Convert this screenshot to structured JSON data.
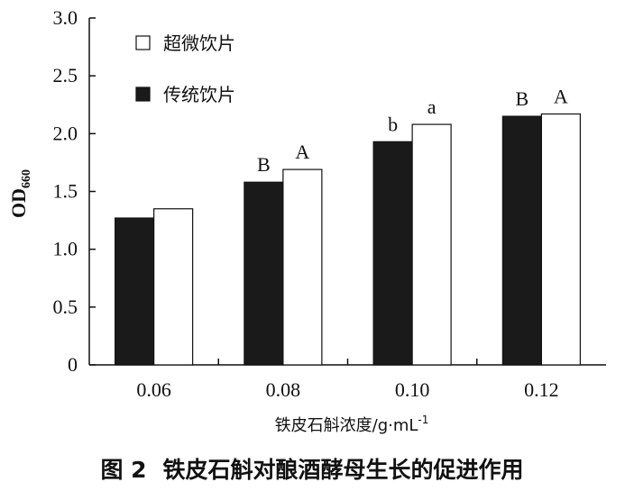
{
  "chart_data": {
    "type": "bar",
    "categories": [
      "0.06",
      "0.08",
      "0.10",
      "0.12"
    ],
    "series": [
      {
        "name": "传统饮片",
        "values": [
          1.27,
          1.58,
          1.93,
          2.15
        ],
        "color": "#1a1a1a",
        "letters": [
          "",
          "B",
          "b",
          "B"
        ]
      },
      {
        "name": "超微饮片",
        "values": [
          1.35,
          1.69,
          2.08,
          2.17
        ],
        "color": "#ffffff",
        "letters": [
          "",
          "A",
          "a",
          "A"
        ]
      }
    ],
    "xlabel": "铁皮石斛浓度/g·mL",
    "xlabel_sup": "-1",
    "ylabel_main": "OD",
    "ylabel_sub": "660",
    "ylim": [
      0,
      3.0
    ],
    "yticks": [
      "0",
      "0.5",
      "1.0",
      "1.5",
      "2.0",
      "2.5",
      "3.0"
    ],
    "ytick_values": [
      0,
      0.5,
      1.0,
      1.5,
      2.0,
      2.5,
      3.0
    ],
    "legend": [
      {
        "label": "超微饮片",
        "color": "#ffffff"
      },
      {
        "label": "传统饮片",
        "color": "#1a1a1a"
      }
    ],
    "legend_position": "top-left",
    "grid": false
  },
  "caption": {
    "label": "图 2",
    "text": "铁皮石斛对酿酒酵母生长的促进作用"
  }
}
